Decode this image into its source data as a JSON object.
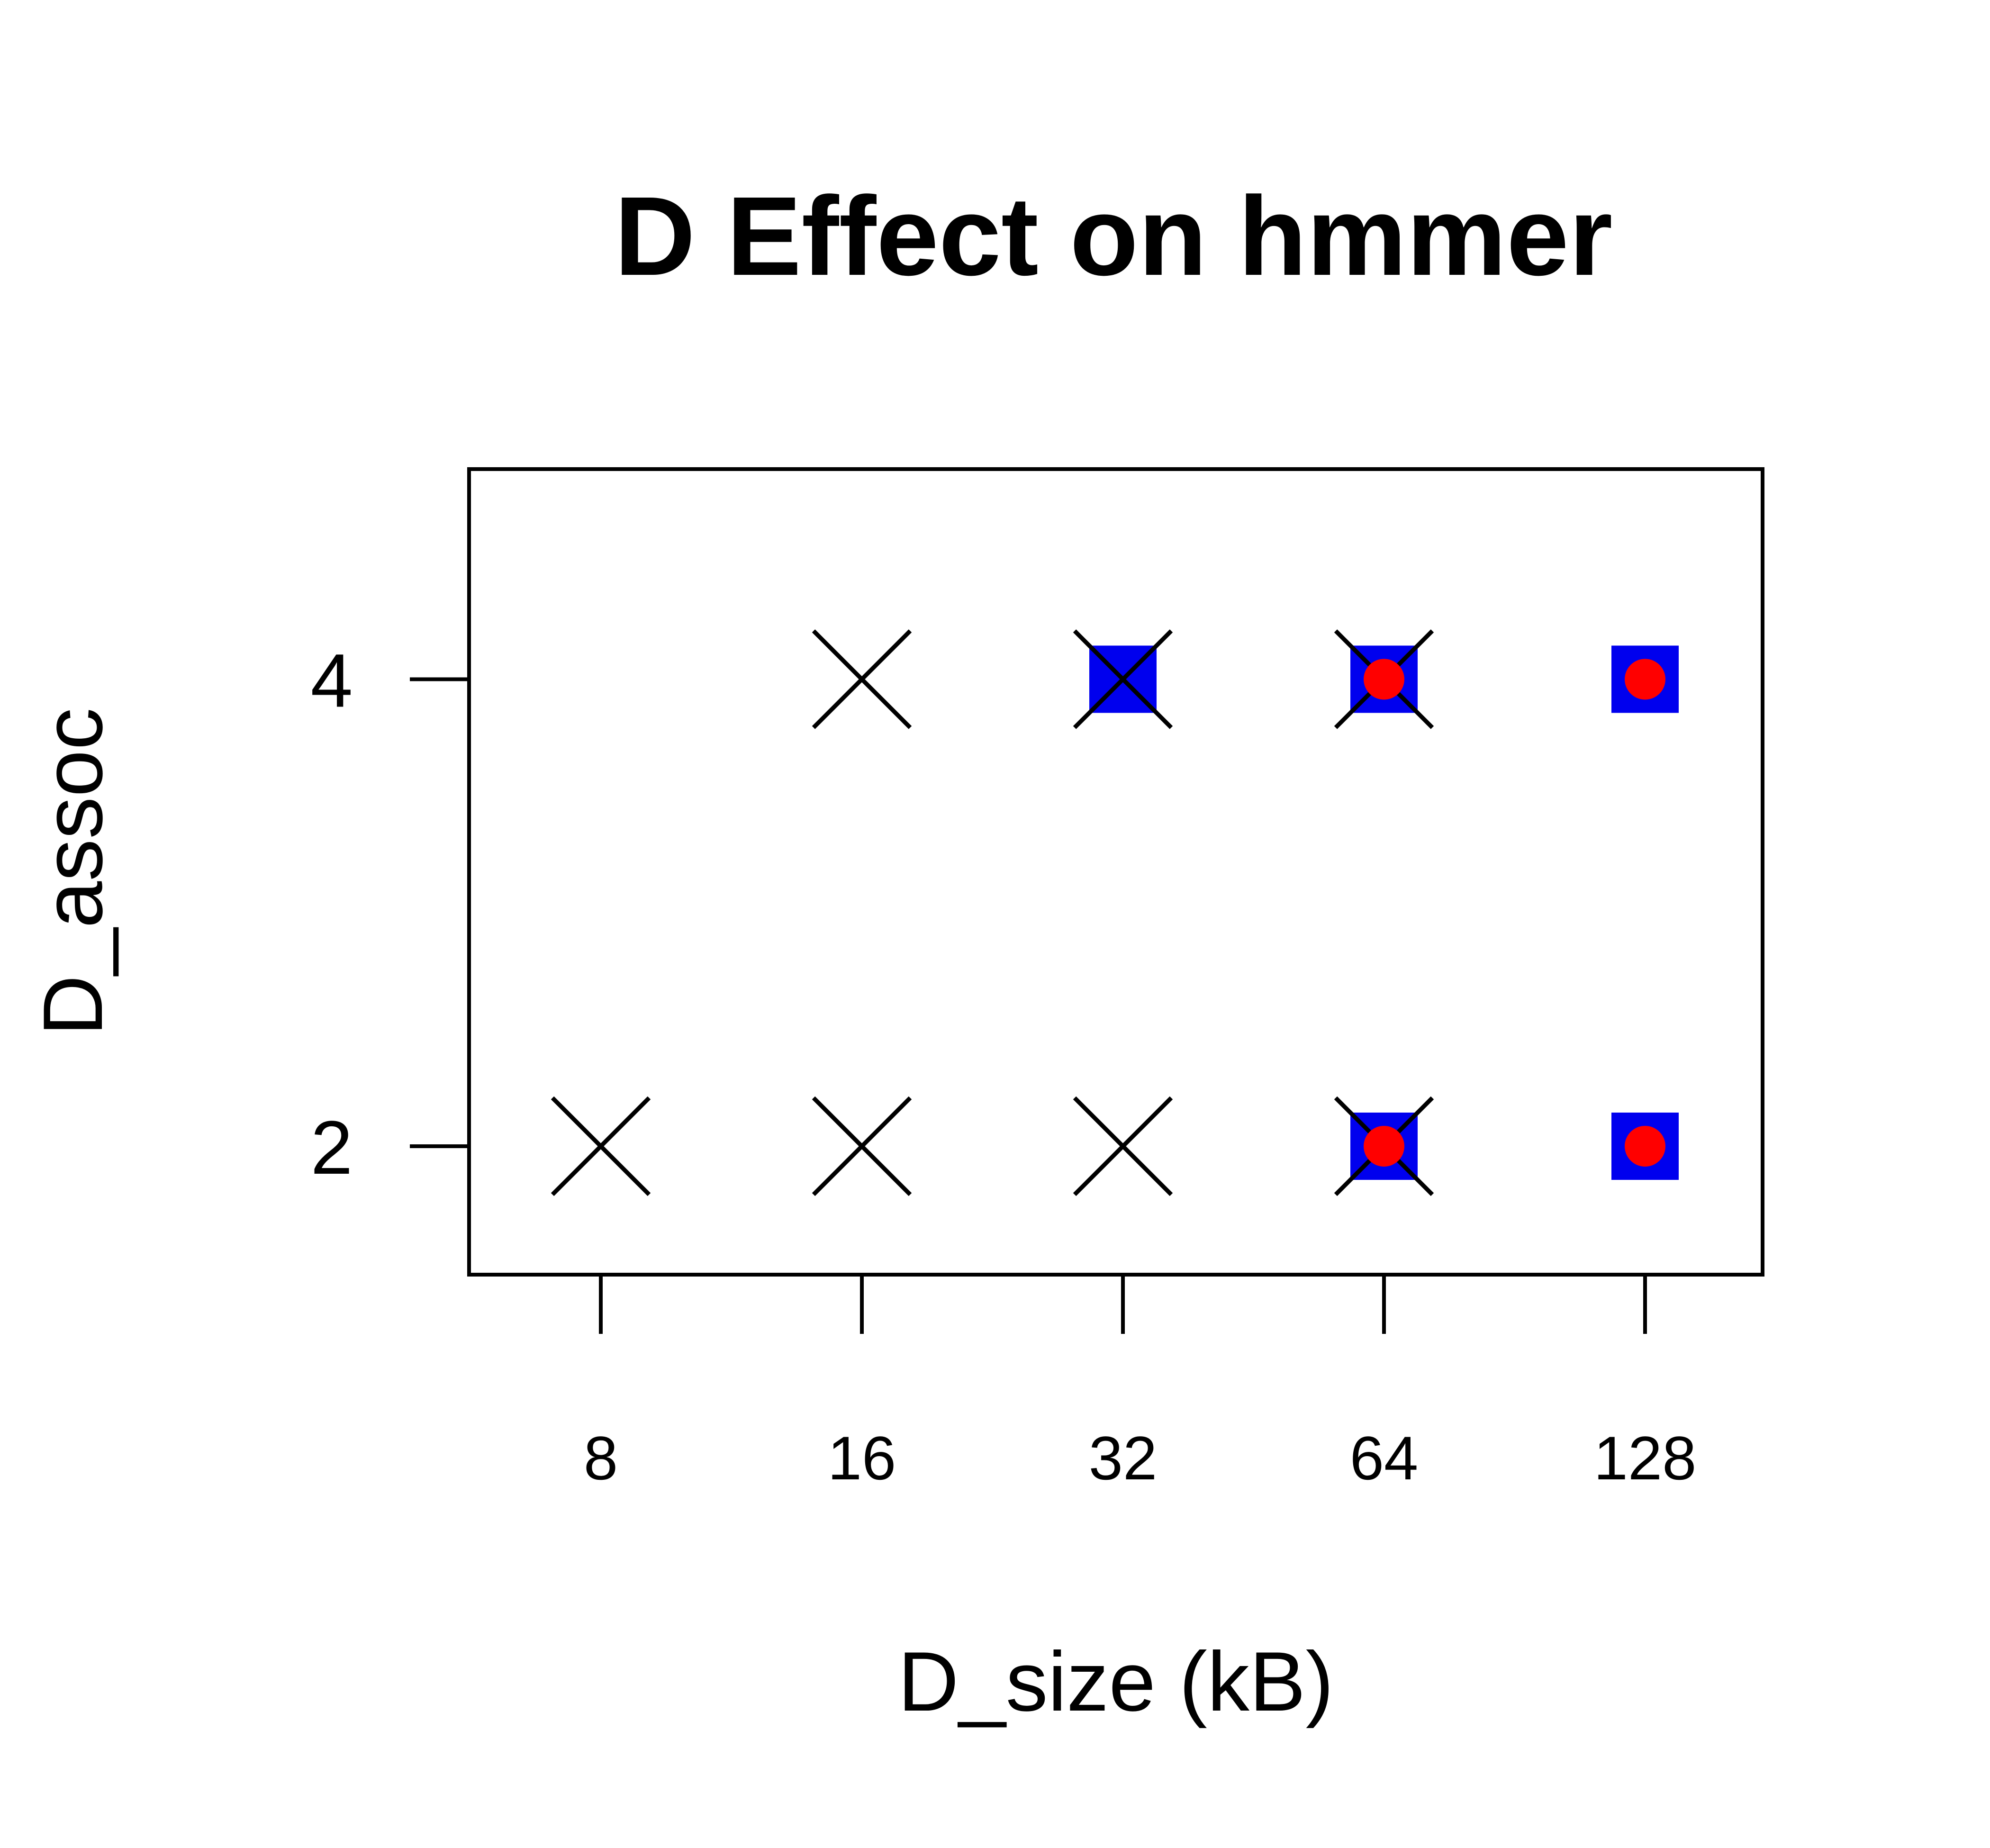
{
  "chart_data": {
    "type": "scatter",
    "title": "D Effect on hmmer",
    "xlabel": "D_size (kB)",
    "ylabel": "D_assoc",
    "x_categories": [
      "8",
      "16",
      "32",
      "64",
      "128"
    ],
    "y_ticks": [
      "2",
      "4"
    ],
    "ylim": [
      1.45,
      4.9
    ],
    "grid": false,
    "colors": {
      "square": "#0000ee",
      "dot": "#ff0000",
      "cross": "#000000"
    },
    "series": [
      {
        "marker": "cross",
        "points": [
          {
            "x": "8",
            "y": 2
          },
          {
            "x": "16",
            "y": 2
          },
          {
            "x": "32",
            "y": 2
          },
          {
            "x": "64",
            "y": 2
          },
          {
            "x": "16",
            "y": 4
          },
          {
            "x": "32",
            "y": 4
          },
          {
            "x": "64",
            "y": 4
          }
        ]
      },
      {
        "marker": "square",
        "points": [
          {
            "x": "64",
            "y": 2
          },
          {
            "x": "128",
            "y": 2
          },
          {
            "x": "32",
            "y": 4
          },
          {
            "x": "64",
            "y": 4
          },
          {
            "x": "128",
            "y": 4
          }
        ]
      },
      {
        "marker": "dot",
        "points": [
          {
            "x": "64",
            "y": 2
          },
          {
            "x": "128",
            "y": 2
          },
          {
            "x": "64",
            "y": 4
          },
          {
            "x": "128",
            "y": 4
          }
        ]
      }
    ]
  }
}
